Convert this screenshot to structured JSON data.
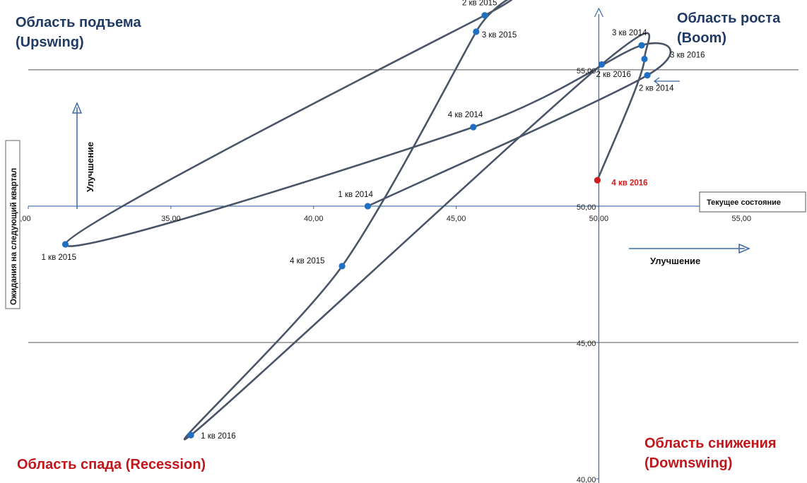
{
  "chart_data": {
    "type": "scatter",
    "title": "",
    "xlabel": "Текущее состояние",
    "ylabel": "Ожидания на следующий квартал",
    "xlim": [
      30,
      57
    ],
    "ylim": [
      40,
      57.2
    ],
    "x_axis_cross_y": 50,
    "y_axis_cross_x": 50,
    "grid_y": [
      45,
      55
    ],
    "x_ticks": [
      ",00",
      "35,00",
      "40,00",
      "45,00",
      "50,00",
      "55,00"
    ],
    "x_tick_values": [
      30,
      35,
      40,
      45,
      50,
      55
    ],
    "y_ticks": [
      "40,00",
      "45,00",
      "50,00",
      "55,00"
    ],
    "y_tick_values": [
      40,
      45,
      50,
      55
    ],
    "series": [
      {
        "points": [
          {
            "label": "1 кв 2014",
            "x": 41.9,
            "y": 50.0
          },
          {
            "label": "2 кв 2014",
            "x": 51.7,
            "y": 54.8
          },
          {
            "label": "3 кв 2014",
            "x": 51.5,
            "y": 55.9
          },
          {
            "label": "4 кв 2014",
            "x": 45.6,
            "y": 52.9
          },
          {
            "label": "1 кв 2015",
            "x": 31.3,
            "y": 48.6
          },
          {
            "label": "2 кв 2015",
            "x": 46.0,
            "y": 57.0
          },
          {
            "label": "3 кв 2015",
            "x": 45.7,
            "y": 56.4
          },
          {
            "label": "4 кв 2015",
            "x": 41.0,
            "y": 47.8
          },
          {
            "label": "1 кв 2016",
            "x": 35.7,
            "y": 41.6
          },
          {
            "label": "2 кв 2016",
            "x": 50.1,
            "y": 55.2
          },
          {
            "label": "3 кв 2016",
            "x": 51.6,
            "y": 55.4
          },
          {
            "label": "4 кв 2016",
            "x": 49.95,
            "y": 50.95,
            "highlight": "#d11a1a"
          }
        ]
      }
    ],
    "annotations": {
      "y_improvement": "Улучшение",
      "x_improvement": "Улучшение",
      "legend": "Текущее состояние"
    },
    "quadrants": {
      "upswing": [
        "Область подъема",
        "(Upswing)"
      ],
      "boom": [
        "Область роста",
        "(Boom)"
      ],
      "recession": [
        "Область спада (Recession)"
      ],
      "downswing": [
        "Область снижения",
        "(Downswing)"
      ]
    },
    "colors": {
      "line": "#4a5568",
      "point": "#1f6fc2",
      "axis": "#3b68a8",
      "grid": "#555555",
      "title_blue": "#1f3a63",
      "title_red": "#c0161b"
    }
  }
}
